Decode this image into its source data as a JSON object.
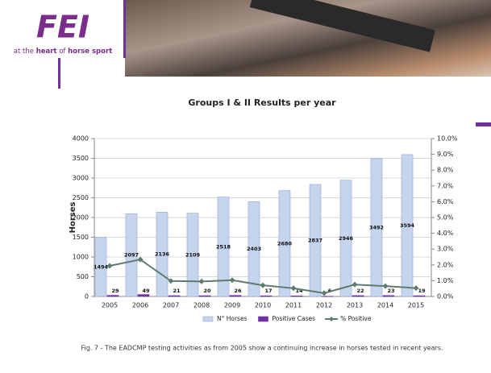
{
  "logo": {
    "mark": "FEI",
    "tagline": [
      "at the ",
      "heart",
      " of ",
      "horse sport"
    ]
  },
  "chart_data": {
    "type": "bar",
    "title": "Groups I & II Results per year",
    "y_label": "Horses",
    "categories": [
      "2005",
      "2006",
      "2007",
      "2008",
      "2009",
      "2010",
      "2011",
      "2012",
      "2013",
      "2014",
      "2015"
    ],
    "series": [
      {
        "name": "N° Horses",
        "type": "bar",
        "color": "#c6d4ee",
        "values": [
          1494,
          2097,
          2136,
          2109,
          2518,
          2403,
          2680,
          2837,
          2946,
          3492,
          3594
        ]
      },
      {
        "name": "Positive Cases",
        "type": "bar",
        "color": "#7030a0",
        "values": [
          29,
          49,
          21,
          20,
          26,
          17,
          14,
          6,
          22,
          23,
          19
        ]
      },
      {
        "name": "% Positive",
        "type": "line",
        "axis": "y2",
        "color": "#5e7c6e",
        "values": [
          1.94,
          2.34,
          0.98,
          0.95,
          1.03,
          0.71,
          0.52,
          0.21,
          0.75,
          0.66,
          0.53
        ]
      }
    ],
    "ylim": [
      0,
      4000
    ],
    "yticks": [
      0,
      500,
      1000,
      1500,
      2000,
      2500,
      3000,
      3500,
      4000
    ],
    "y2lim": [
      0,
      10
    ],
    "y2ticks": [
      {
        "value": 0,
        "label": "0.0%"
      },
      {
        "value": 1,
        "label": "1.0%"
      },
      {
        "value": 2,
        "label": "2.0%"
      },
      {
        "value": 3,
        "label": "3.0%"
      },
      {
        "value": 4,
        "label": "4.0%"
      },
      {
        "value": 5,
        "label": "5.0%"
      },
      {
        "value": 6,
        "label": "6.0%"
      },
      {
        "value": 7,
        "label": "7.0%"
      },
      {
        "value": 8,
        "label": "8.0%"
      },
      {
        "value": 9,
        "label": "9.0%"
      },
      {
        "value": 10,
        "label": "10.0%"
      }
    ],
    "grid": true,
    "legend": "bottom"
  },
  "caption": "Fig. 7 - The EADCMP testing activities as from 2005 show a continuing increase in horses tested in recent years."
}
